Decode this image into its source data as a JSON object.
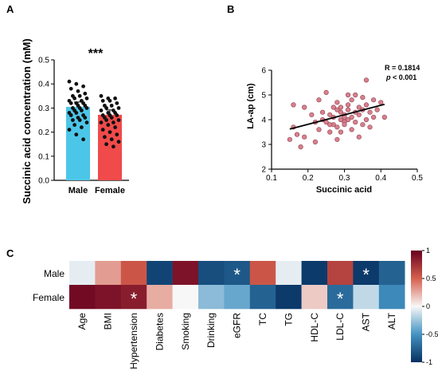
{
  "panels": {
    "a": "A",
    "b": "B",
    "c": "C"
  },
  "chart_data": [
    {
      "type": "bar",
      "panel": "A",
      "ylabel": "Succinic acid concentration (mM)",
      "ylim": [
        0,
        0.5
      ],
      "yticks": [
        "0.0",
        "0.1",
        "0.2",
        "0.3",
        "0.4",
        "0.5"
      ],
      "categories": [
        "Male",
        "Female"
      ],
      "values": [
        0.305,
        0.272
      ],
      "errors": [
        0.02,
        0.02
      ],
      "colors": [
        "#4cc6e8",
        "#f04a4a"
      ],
      "significance": "***",
      "points": [
        [
          0.41,
          0.4,
          0.39,
          0.38,
          0.37,
          0.36,
          0.35,
          0.35,
          0.34,
          0.34,
          0.33,
          0.33,
          0.32,
          0.32,
          0.32,
          0.31,
          0.31,
          0.3,
          0.3,
          0.3,
          0.29,
          0.29,
          0.28,
          0.28,
          0.27,
          0.27,
          0.26,
          0.26,
          0.25,
          0.25,
          0.24,
          0.23,
          0.22,
          0.21,
          0.19,
          0.17
        ],
        [
          0.35,
          0.34,
          0.34,
          0.33,
          0.33,
          0.32,
          0.31,
          0.31,
          0.3,
          0.3,
          0.29,
          0.29,
          0.28,
          0.28,
          0.27,
          0.27,
          0.27,
          0.26,
          0.26,
          0.25,
          0.25,
          0.24,
          0.24,
          0.23,
          0.22,
          0.21,
          0.2,
          0.19,
          0.18,
          0.17,
          0.16,
          0.15,
          0.14
        ]
      ]
    },
    {
      "type": "scatter",
      "panel": "B",
      "xlabel": "Succinic acid",
      "ylabel": "LA-ap (cm)",
      "xlim": [
        0.1,
        0.5
      ],
      "ylim": [
        2,
        6
      ],
      "xticks": [
        "0.1",
        "0.2",
        "0.3",
        "0.4",
        "0.5"
      ],
      "yticks": [
        "2",
        "3",
        "4",
        "5",
        "6"
      ],
      "annotation_r": "R = 0.1814",
      "annotation_p_italic": "p",
      "annotation_p_rest": " < 0.001",
      "point_color": "#d9808c",
      "fit_line": {
        "x": [
          0.15,
          0.41
        ],
        "y": [
          3.62,
          4.62
        ]
      },
      "points": [
        [
          0.15,
          3.2
        ],
        [
          0.16,
          3.7
        ],
        [
          0.16,
          4.6
        ],
        [
          0.17,
          3.4
        ],
        [
          0.18,
          2.9
        ],
        [
          0.19,
          3.3
        ],
        [
          0.19,
          4.5
        ],
        [
          0.21,
          4.2
        ],
        [
          0.22,
          3.1
        ],
        [
          0.22,
          3.9
        ],
        [
          0.23,
          3.6
        ],
        [
          0.23,
          4.8
        ],
        [
          0.24,
          4.0
        ],
        [
          0.24,
          4.3
        ],
        [
          0.25,
          3.9
        ],
        [
          0.25,
          5.1
        ],
        [
          0.26,
          3.5
        ],
        [
          0.26,
          4.2
        ],
        [
          0.27,
          4.5
        ],
        [
          0.27,
          3.8
        ],
        [
          0.27,
          4.1
        ],
        [
          0.28,
          3.2
        ],
        [
          0.28,
          3.7
        ],
        [
          0.28,
          4.7
        ],
        [
          0.29,
          4.0
        ],
        [
          0.29,
          4.3
        ],
        [
          0.29,
          4.5
        ],
        [
          0.29,
          3.5
        ],
        [
          0.3,
          3.9
        ],
        [
          0.3,
          4.2
        ],
        [
          0.3,
          4.1
        ],
        [
          0.3,
          3.8
        ],
        [
          0.31,
          4.0
        ],
        [
          0.31,
          4.6
        ],
        [
          0.31,
          4.4
        ],
        [
          0.32,
          4.8
        ],
        [
          0.32,
          3.6
        ],
        [
          0.32,
          4.1
        ],
        [
          0.33,
          5.0
        ],
        [
          0.33,
          4.3
        ],
        [
          0.33,
          3.9
        ],
        [
          0.34,
          4.5
        ],
        [
          0.34,
          3.3
        ],
        [
          0.34,
          4.2
        ],
        [
          0.35,
          4.9
        ],
        [
          0.35,
          4.4
        ],
        [
          0.35,
          3.8
        ],
        [
          0.36,
          4.6
        ],
        [
          0.36,
          5.6
        ],
        [
          0.36,
          4.0
        ],
        [
          0.37,
          4.3
        ],
        [
          0.37,
          3.7
        ],
        [
          0.38,
          4.1
        ],
        [
          0.38,
          4.8
        ],
        [
          0.39,
          4.4
        ],
        [
          0.4,
          4.7
        ],
        [
          0.41,
          4.1
        ],
        [
          0.31,
          5.0
        ],
        [
          0.28,
          4.4
        ],
        [
          0.26,
          3.8
        ]
      ]
    },
    {
      "type": "heatmap",
      "panel": "C",
      "rows": [
        "Male",
        "Female"
      ],
      "columns": [
        "Age",
        "BMI",
        "Hypertension",
        "Diabetes",
        "Smoking",
        "Drinking",
        "eGFR",
        "TC",
        "TG",
        "HDL-C",
        "LDL-C",
        "AST",
        "ALT"
      ],
      "values": [
        [
          -0.05,
          0.3,
          0.55,
          -0.9,
          0.9,
          -0.85,
          -0.8,
          0.55,
          -0.05,
          -0.95,
          0.65,
          -0.95,
          -0.75
        ],
        [
          0.95,
          0.9,
          0.85,
          0.25,
          0.0,
          -0.3,
          -0.4,
          -0.75,
          -0.95,
          0.15,
          -0.7,
          -0.15,
          -0.55
        ]
      ],
      "asterisks": [
        [
          null,
          null,
          null,
          null,
          null,
          null,
          "*",
          null,
          null,
          null,
          null,
          "*",
          null
        ],
        [
          null,
          null,
          "*",
          null,
          null,
          null,
          null,
          null,
          null,
          null,
          "*",
          null,
          null
        ]
      ],
      "colorbar_ticks": [
        "1",
        "0.5",
        "0",
        "-0.5",
        "-1"
      ],
      "vlim": [
        -1,
        1
      ]
    }
  ]
}
